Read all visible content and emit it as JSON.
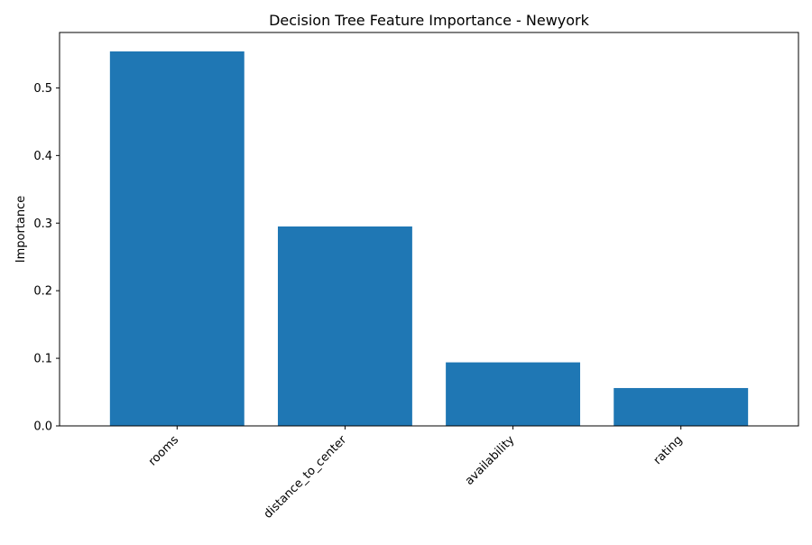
{
  "chart_data": {
    "type": "bar",
    "title": "Decision Tree Feature Importance - Newyork",
    "xlabel": "",
    "ylabel": "Importance",
    "categories": [
      "rooms",
      "distance_to_center",
      "availability",
      "rating"
    ],
    "values": [
      0.554,
      0.295,
      0.094,
      0.056
    ],
    "ylim": [
      0,
      0.582
    ],
    "yticks": [
      0.0,
      0.1,
      0.2,
      0.3,
      0.4,
      0.5
    ],
    "ytick_labels": [
      "0.0",
      "0.1",
      "0.2",
      "0.3",
      "0.4",
      "0.5"
    ],
    "bar_color": "#1f77b4",
    "grid": false,
    "legend": "none"
  }
}
